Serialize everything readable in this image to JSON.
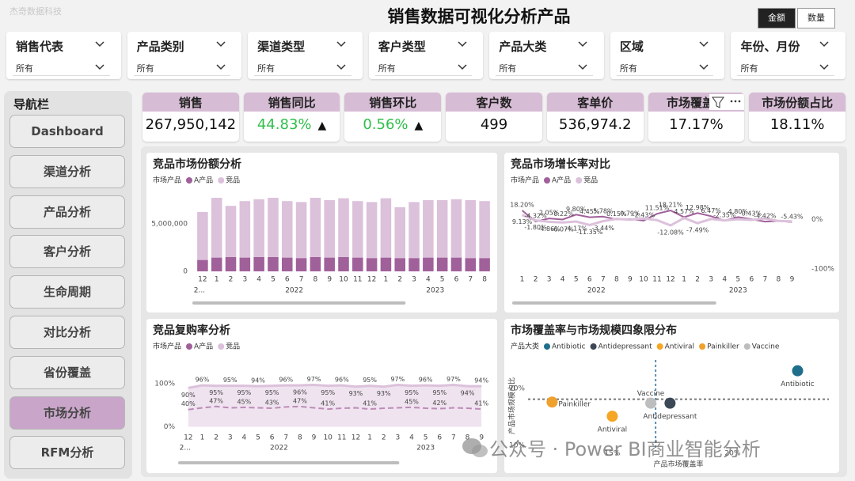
{
  "brand": "杰奇数据科技",
  "header": {
    "title": "销售数据可视化分析产品",
    "toggles": [
      {
        "label": "金额",
        "active": true
      },
      {
        "label": "数量",
        "active": false
      }
    ]
  },
  "filters": [
    {
      "label": "销售代表",
      "value": "所有"
    },
    {
      "label": "产品类别",
      "value": "所有"
    },
    {
      "label": "渠道类型",
      "value": "所有"
    },
    {
      "label": "客户类型",
      "value": "所有"
    },
    {
      "label": "产品大类",
      "value": "所有"
    },
    {
      "label": "区域",
      "value": "所有"
    },
    {
      "label": "年份、月份",
      "value": "所有"
    }
  ],
  "nav": {
    "title": "导航栏",
    "items": [
      {
        "label": "Dashboard",
        "active": false
      },
      {
        "label": "渠道分析",
        "active": false
      },
      {
        "label": "产品分析",
        "active": false
      },
      {
        "label": "客户分析",
        "active": false
      },
      {
        "label": "生命周期",
        "active": false
      },
      {
        "label": "对比分析",
        "active": false
      },
      {
        "label": "省份覆盖",
        "active": false
      },
      {
        "label": "市场分析",
        "active": true
      },
      {
        "label": "RFM分析",
        "active": false
      }
    ]
  },
  "kpis": [
    {
      "title": "销售",
      "value": "267,950,142"
    },
    {
      "title": "销售同比",
      "value": "44.83%",
      "trend": "▲",
      "color": "#2fbf4a"
    },
    {
      "title": "销售环比",
      "value": "0.56%",
      "trend": "▲",
      "color": "#2fbf4a"
    },
    {
      "title": "客户数",
      "value": "499"
    },
    {
      "title": "客单价",
      "value": "536,974.2"
    },
    {
      "title": "市场覆盖率",
      "value": "17.17%"
    },
    {
      "title": "市场份额占比",
      "value": "18.11%"
    }
  ],
  "chart_data": [
    {
      "type": "bar",
      "stacked": true,
      "title": "竞品市场份额分析",
      "legend_title": "市场产品",
      "categories": [
        "12",
        "1",
        "2",
        "3",
        "4",
        "5",
        "6",
        "7",
        "8",
        "9",
        "10",
        "11",
        "12",
        "1",
        "2",
        "3",
        "4",
        "5",
        "6",
        "7",
        "8"
      ],
      "years": [
        "2...",
        "2022",
        "2023"
      ],
      "series": [
        {
          "name": "A产品",
          "color": "#a0609a",
          "values": [
            1200000,
            1450000,
            1500000,
            1450000,
            1500000,
            1500000,
            1450000,
            1400000,
            1500000,
            1450000,
            1500000,
            1450000,
            1400000,
            1450000,
            1400000,
            1400000,
            1450000,
            1450000,
            1450000,
            1400000,
            1400000
          ]
        },
        {
          "name": "竞品",
          "color": "#dcc1db",
          "values": [
            5050000,
            6300000,
            5400000,
            5950000,
            6100000,
            6250000,
            5950000,
            5900000,
            6250000,
            6050000,
            6200000,
            5950000,
            5900000,
            6250000,
            5350000,
            5900000,
            6050000,
            6050000,
            6150000,
            6100000,
            6000000
          ]
        }
      ],
      "ylim": [
        0,
        8000000
      ],
      "yticks": [
        0,
        {
          "value": 5000000,
          "label": "5,000,000"
        }
      ]
    },
    {
      "type": "line",
      "title": "竞品市场增长率对比",
      "legend_title": "市场产品",
      "categories": [
        "1",
        "2",
        "3",
        "4",
        "5",
        "6",
        "7",
        "8",
        "9",
        "10",
        "11",
        "12",
        "1",
        "2",
        "3",
        "4",
        "5",
        "6",
        "7",
        "8",
        "9"
      ],
      "years": [
        "2022",
        "2023"
      ],
      "series": [
        {
          "name": "A产品",
          "color": "#a0609a",
          "values": [
            18.2,
            -4.32,
            2.05,
            -0.22,
            9.8,
            4.45,
            5.78,
            0.15,
            0.79,
            -2.43,
            11.51,
            18.21,
            4.57,
            12.98,
            6.47,
            -2.35,
            4.8,
            0.43,
            -4.42,
            -3.0,
            -5.43
          ],
          "value_labels": [
            "18.20%",
            "-4.32%",
            "2.05%",
            "-0.22%",
            "9.80%",
            "4.45%",
            "5.78%",
            "0.15%",
            "0.79%",
            "-2.43%",
            "11.51%",
            "18.21%",
            "4.57%",
            "12.98%",
            "6.47%",
            "-2.35%",
            "4.80%",
            "0.43%",
            "-4.42%",
            null,
            "-5.43%"
          ]
        },
        {
          "name": "竞品",
          "color": "#dcc1db",
          "values": [
            9.13,
            -1.8,
            -4.86,
            -6.07,
            -4.17,
            -11.35,
            -3.44,
            1.2,
            -0.5,
            2.0,
            -1.5,
            -12.08,
            3.0,
            -7.49,
            1.0,
            -2.0,
            0.5,
            -1.0,
            2.0,
            -3.0,
            -4.0
          ],
          "value_labels": [
            "9.13%",
            "-1.80%",
            "-4.86%",
            "-6.07%",
            "-4.17%",
            "-11.35%",
            "-3.44%",
            null,
            null,
            null,
            null,
            "-12.08%",
            null,
            "-7.49%",
            null,
            null,
            null,
            null,
            null,
            null,
            null
          ]
        }
      ],
      "ylim": [
        -105,
        55
      ],
      "yticks": [
        {
          "value": 0,
          "label": "0%"
        },
        {
          "value": -100,
          "label": "-100%"
        }
      ]
    },
    {
      "type": "line",
      "title": "竞品复购率分析",
      "legend_title": "市场产品",
      "categories": [
        "12",
        "1",
        "2",
        "3",
        "4",
        "5",
        "6",
        "7",
        "8",
        "9",
        "10",
        "11",
        "12",
        "1",
        "2",
        "3",
        "4",
        "5",
        "6",
        "7",
        "8",
        "9"
      ],
      "years": [
        "2...",
        "2022",
        "2023"
      ],
      "series": [
        {
          "name": "A产品",
          "color": "#a0609a",
          "dash": true,
          "values": [
            40,
            44,
            47,
            44,
            45,
            44,
            43,
            46,
            47,
            44,
            41,
            43,
            44,
            41,
            43,
            44,
            45,
            43,
            42,
            44,
            43,
            41
          ],
          "value_labels": [
            "40%",
            null,
            "47%",
            null,
            "45%",
            null,
            "43%",
            null,
            "47%",
            null,
            "41%",
            null,
            null,
            "41%",
            null,
            null,
            "45%",
            null,
            "42%",
            null,
            null,
            "41%"
          ]
        },
        {
          "name": "竞品",
          "color": "#dcc1db",
          "area": true,
          "values": [
            90,
            96,
            95,
            95,
            95,
            94,
            95,
            96,
            96,
            97,
            95,
            96,
            93,
            95,
            93,
            97,
            95,
            96,
            95,
            97,
            94,
            94
          ],
          "value_labels": [
            "90%",
            "96%",
            "95%",
            "95%",
            "95%",
            "94%",
            "95%",
            "96%",
            "96%",
            "97%",
            "95%",
            "96%",
            "93%",
            "95%",
            "93%",
            "97%",
            "95%",
            "96%",
            "95%",
            "97%",
            "94%",
            "94%"
          ]
        }
      ],
      "ylim": [
        -10,
        140
      ],
      "yticks": [
        {
          "value": 100,
          "label": "100%"
        },
        {
          "value": 0,
          "label": "0%"
        }
      ]
    },
    {
      "type": "scatter",
      "title": "市场覆盖率与市场规模四象限分布",
      "legend_title": "产品大类",
      "x_label": "产品市场覆盖率",
      "y_label": "产品市场规模占比",
      "series": [
        {
          "name": "Antibiotic",
          "color": "#1f6e8c",
          "x": [
            22.7
          ],
          "values": [
            23.1
          ]
        },
        {
          "name": "Antidepressant",
          "color": "#3c4856",
          "x": [
            17.4
          ],
          "values": [
            17.4
          ]
        },
        {
          "name": "Antiviral",
          "color": "#f5a623",
          "x": [
            15.0
          ],
          "values": [
            15.1
          ]
        },
        {
          "name": "Painkiller",
          "color": "#f0a02c",
          "x": [
            12.5
          ],
          "values": [
            17.6
          ]
        },
        {
          "name": "Vaccine",
          "color": "#bdbdbd",
          "x": [
            16.6
          ],
          "values": [
            17.4
          ]
        }
      ],
      "x_ref": 16.8,
      "y_ref": 18.1,
      "xlim": [
        11.5,
        24
      ],
      "xticks": [
        {
          "value": 15,
          "label": "15%"
        },
        {
          "value": 20,
          "label": "20%"
        }
      ],
      "ylim": [
        9,
        25
      ],
      "yticks": [
        {
          "value": 10,
          "label": "10%"
        },
        {
          "value": 20,
          "label": "20%"
        }
      ]
    }
  ],
  "watermark": "公众号 · Power BI商业智能分析"
}
